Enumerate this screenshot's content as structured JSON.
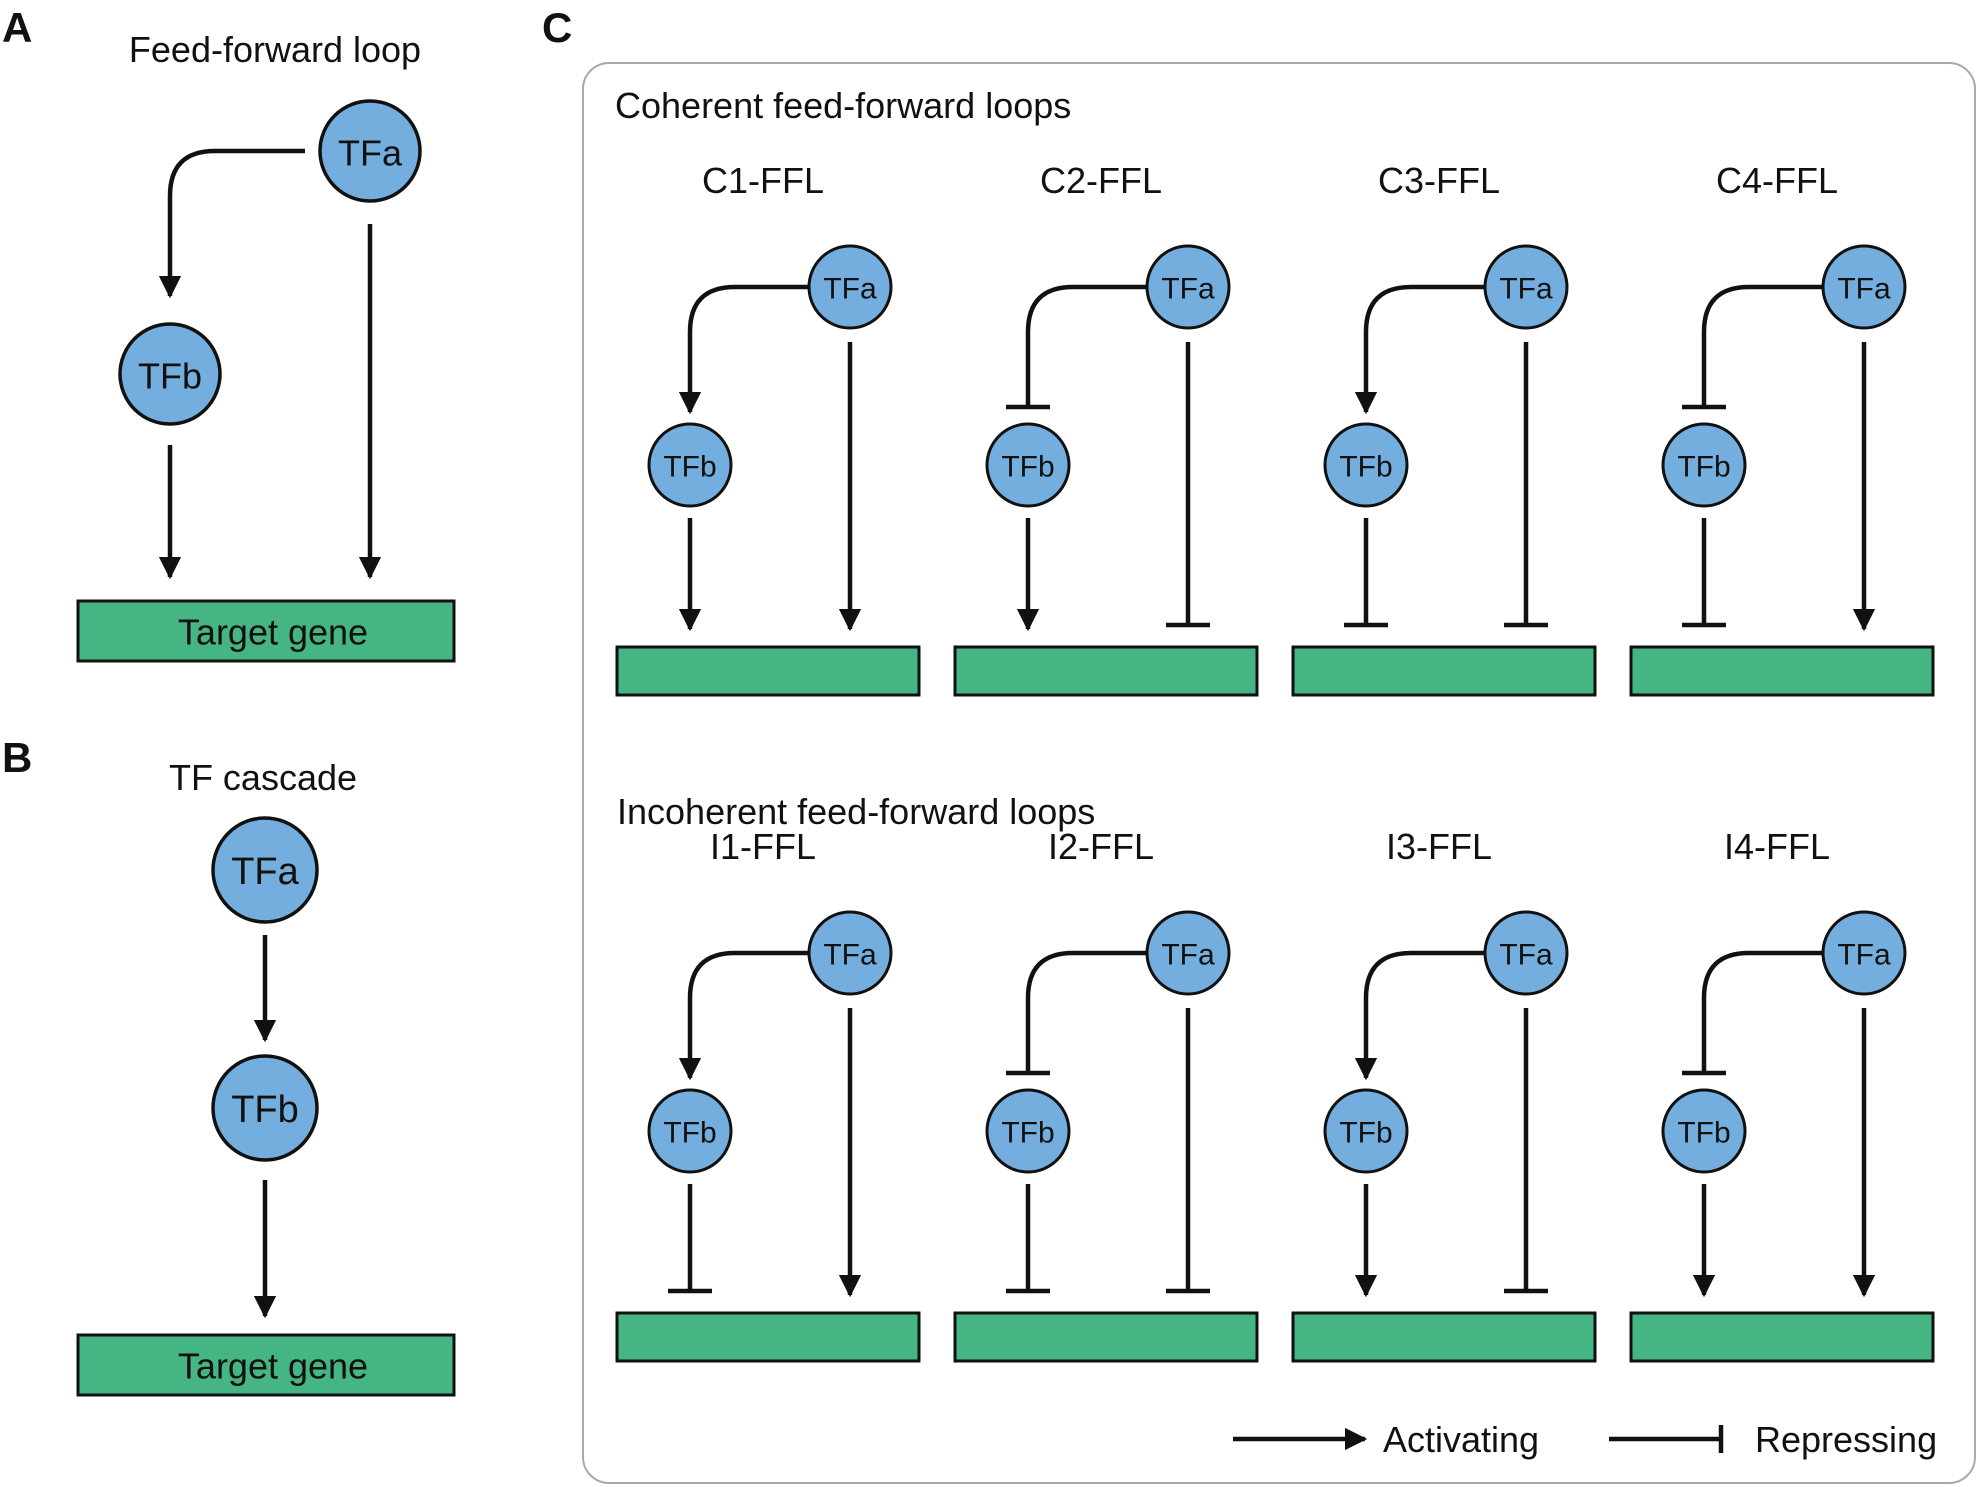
{
  "colors": {
    "node_fill": "#74aede",
    "node_stroke": "#111111",
    "gene_fill": "#45b583",
    "edge": "#111111",
    "panel_border": "#a9a9a9"
  },
  "panels": {
    "a": {
      "letter": "A",
      "title": "Feed-forward loop",
      "tfa": "TFa",
      "tfb": "TFb",
      "gene": "Target gene"
    },
    "b": {
      "letter": "B",
      "title": "TF cascade",
      "tfa": "TFa",
      "tfb": "TFb",
      "gene": "Target gene"
    },
    "c": {
      "letter": "C",
      "coherent_heading": "Coherent feed-forward loops",
      "incoherent_heading": "Incoherent feed-forward loops",
      "node_tfa": "TFa",
      "node_tfb": "TFb",
      "motifs": [
        {
          "label": "C1-FFL",
          "a_to_b": "activating",
          "b_to_gene": "activating",
          "a_to_gene": "activating"
        },
        {
          "label": "C2-FFL",
          "a_to_b": "repressing",
          "b_to_gene": "activating",
          "a_to_gene": "repressing"
        },
        {
          "label": "C3-FFL",
          "a_to_b": "activating",
          "b_to_gene": "repressing",
          "a_to_gene": "repressing"
        },
        {
          "label": "C4-FFL",
          "a_to_b": "repressing",
          "b_to_gene": "repressing",
          "a_to_gene": "activating"
        },
        {
          "label": "I1-FFL",
          "a_to_b": "activating",
          "b_to_gene": "repressing",
          "a_to_gene": "activating"
        },
        {
          "label": "I2-FFL",
          "a_to_b": "repressing",
          "b_to_gene": "repressing",
          "a_to_gene": "repressing"
        },
        {
          "label": "I3-FFL",
          "a_to_b": "activating",
          "b_to_gene": "activating",
          "a_to_gene": "repressing"
        },
        {
          "label": "I4-FFL",
          "a_to_b": "repressing",
          "b_to_gene": "activating",
          "a_to_gene": "activating"
        }
      ],
      "legend": {
        "activating": "Activating",
        "repressing": "Repressing"
      }
    }
  }
}
